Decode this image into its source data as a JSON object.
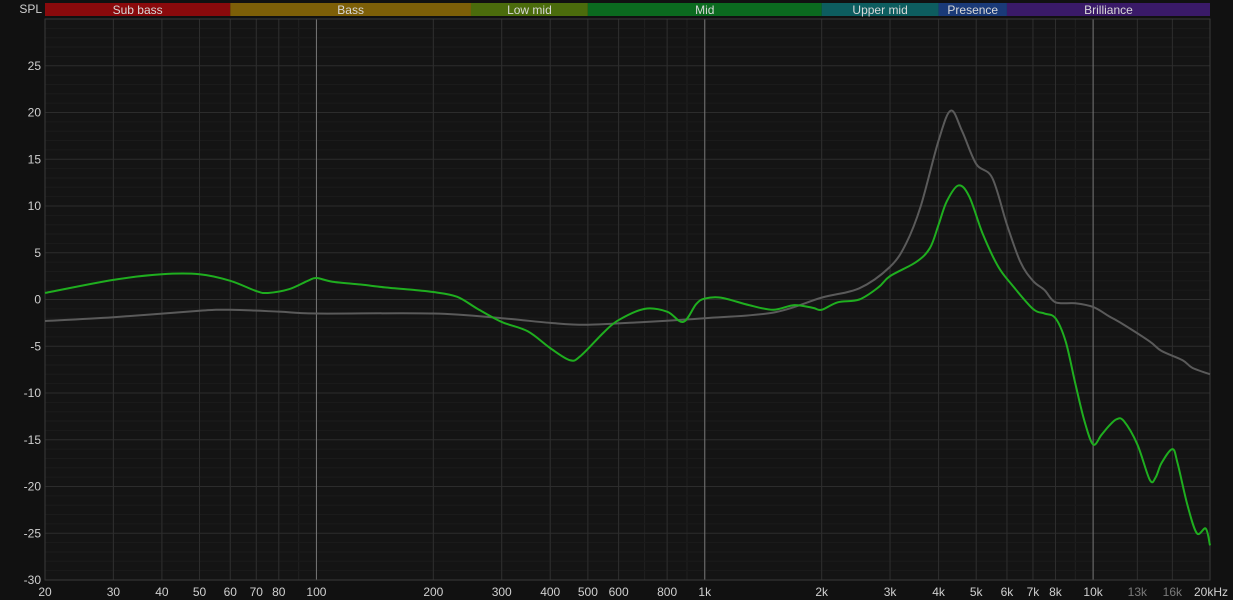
{
  "chart_data": {
    "type": "line",
    "ylabel": "SPL",
    "x_scale": "log",
    "xlim": [
      20,
      20000
    ],
    "ylim": [
      -30,
      30
    ],
    "grid": true,
    "x_ticks": [
      {
        "v": 20,
        "label": "20"
      },
      {
        "v": 30,
        "label": "30"
      },
      {
        "v": 40,
        "label": "40"
      },
      {
        "v": 50,
        "label": "50"
      },
      {
        "v": 60,
        "label": "60"
      },
      {
        "v": 70,
        "label": "70"
      },
      {
        "v": 80,
        "label": "80"
      },
      {
        "v": 100,
        "label": "100"
      },
      {
        "v": 200,
        "label": "200"
      },
      {
        "v": 300,
        "label": "300"
      },
      {
        "v": 400,
        "label": "400"
      },
      {
        "v": 500,
        "label": "500"
      },
      {
        "v": 600,
        "label": "600"
      },
      {
        "v": 800,
        "label": "800"
      },
      {
        "v": 1000,
        "label": "1k"
      },
      {
        "v": 2000,
        "label": "2k"
      },
      {
        "v": 3000,
        "label": "3k"
      },
      {
        "v": 4000,
        "label": "4k"
      },
      {
        "v": 5000,
        "label": "5k"
      },
      {
        "v": 6000,
        "label": "6k"
      },
      {
        "v": 7000,
        "label": "7k"
      },
      {
        "v": 8000,
        "label": "8k"
      },
      {
        "v": 10000,
        "label": "10k"
      },
      {
        "v": 13000,
        "label": "13k",
        "dim": true
      },
      {
        "v": 16000,
        "label": "16k",
        "dim": true
      },
      {
        "v": 20000,
        "label": "20kHz"
      }
    ],
    "y_ticks": [
      25,
      20,
      15,
      10,
      5,
      0,
      -5,
      -10,
      -15,
      -20,
      -25,
      -30
    ],
    "bands": [
      {
        "label": "Sub bass",
        "from": 20,
        "to": 60,
        "color": "#8a0a0c"
      },
      {
        "label": "Bass",
        "from": 60,
        "to": 250,
        "color": "#7d5f08"
      },
      {
        "label": "Low mid",
        "from": 250,
        "to": 500,
        "color": "#4b6c0c"
      },
      {
        "label": "Mid",
        "from": 500,
        "to": 2000,
        "color": "#0b6a1f"
      },
      {
        "label": "Upper mid",
        "from": 2000,
        "to": 4000,
        "color": "#0d5d5f"
      },
      {
        "label": "Presence",
        "from": 4000,
        "to": 6000,
        "color": "#1a3a78"
      },
      {
        "label": "Brilliance",
        "from": 6000,
        "to": 20000,
        "color": "#3a1a68"
      }
    ],
    "series": [
      {
        "color": "#5a5a5a",
        "points": [
          [
            20,
            -2.3
          ],
          [
            30,
            -1.9
          ],
          [
            50,
            -1.2
          ],
          [
            60,
            -1.1
          ],
          [
            80,
            -1.3
          ],
          [
            100,
            -1.5
          ],
          [
            200,
            -1.5
          ],
          [
            300,
            -2.0
          ],
          [
            400,
            -2.5
          ],
          [
            500,
            -2.7
          ],
          [
            700,
            -2.4
          ],
          [
            1000,
            -2.0
          ],
          [
            1500,
            -1.4
          ],
          [
            2000,
            0.2
          ],
          [
            2500,
            1.2
          ],
          [
            3000,
            3.5
          ],
          [
            3300,
            6
          ],
          [
            3600,
            10
          ],
          [
            4000,
            17
          ],
          [
            4300,
            20.2
          ],
          [
            4600,
            18
          ],
          [
            5000,
            14.5
          ],
          [
            5500,
            13
          ],
          [
            6000,
            8
          ],
          [
            6500,
            4
          ],
          [
            7000,
            2
          ],
          [
            7500,
            1
          ],
          [
            8000,
            -0.3
          ],
          [
            9000,
            -0.4
          ],
          [
            10000,
            -0.8
          ],
          [
            11000,
            -1.8
          ],
          [
            12000,
            -2.7
          ],
          [
            14000,
            -4.5
          ],
          [
            15000,
            -5.5
          ],
          [
            17000,
            -6.5
          ],
          [
            18000,
            -7.3
          ],
          [
            20000,
            -8.0
          ]
        ]
      },
      {
        "color": "#1fae1f",
        "points": [
          [
            20,
            0.7
          ],
          [
            30,
            2.1
          ],
          [
            40,
            2.7
          ],
          [
            50,
            2.7
          ],
          [
            60,
            2.0
          ],
          [
            70,
            0.9
          ],
          [
            75,
            0.7
          ],
          [
            85,
            1.1
          ],
          [
            95,
            2.0
          ],
          [
            100,
            2.3
          ],
          [
            110,
            1.9
          ],
          [
            130,
            1.6
          ],
          [
            150,
            1.3
          ],
          [
            180,
            1.0
          ],
          [
            200,
            0.8
          ],
          [
            230,
            0.3
          ],
          [
            260,
            -1.0
          ],
          [
            300,
            -2.4
          ],
          [
            350,
            -3.4
          ],
          [
            400,
            -5.2
          ],
          [
            450,
            -6.5
          ],
          [
            480,
            -6.0
          ],
          [
            550,
            -3.5
          ],
          [
            600,
            -2.2
          ],
          [
            700,
            -1.0
          ],
          [
            800,
            -1.3
          ],
          [
            880,
            -2.4
          ],
          [
            950,
            -0.5
          ],
          [
            1000,
            0.1
          ],
          [
            1100,
            0.2
          ],
          [
            1300,
            -0.6
          ],
          [
            1500,
            -1.1
          ],
          [
            1700,
            -0.6
          ],
          [
            1900,
            -0.9
          ],
          [
            2000,
            -1.1
          ],
          [
            2200,
            -0.3
          ],
          [
            2500,
            0.0
          ],
          [
            2800,
            1.3
          ],
          [
            3000,
            2.5
          ],
          [
            3500,
            4.0
          ],
          [
            3800,
            5.5
          ],
          [
            4000,
            8
          ],
          [
            4200,
            10.5
          ],
          [
            4500,
            12.2
          ],
          [
            4800,
            11
          ],
          [
            5200,
            7
          ],
          [
            5700,
            3.5
          ],
          [
            6200,
            1.5
          ],
          [
            7000,
            -1
          ],
          [
            7500,
            -1.5
          ],
          [
            8000,
            -2
          ],
          [
            8500,
            -4.5
          ],
          [
            9000,
            -9
          ],
          [
            9500,
            -13
          ],
          [
            10000,
            -15.5
          ],
          [
            10500,
            -14.5
          ],
          [
            11000,
            -13.5
          ],
          [
            11500,
            -12.8
          ],
          [
            12000,
            -13
          ],
          [
            13000,
            -15.5
          ],
          [
            14000,
            -19.3
          ],
          [
            14500,
            -19
          ],
          [
            15000,
            -17.5
          ],
          [
            16000,
            -16
          ],
          [
            16500,
            -17.5
          ],
          [
            17500,
            -22
          ],
          [
            18500,
            -25
          ],
          [
            19500,
            -24.5
          ],
          [
            20000,
            -26.3
          ]
        ]
      }
    ]
  }
}
